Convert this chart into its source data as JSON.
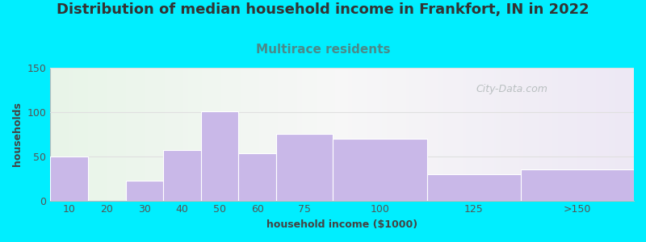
{
  "title": "Distribution of median household income in Frankfort, IN in 2022",
  "subtitle": "Multirace residents",
  "xlabel": "household income ($1000)",
  "ylabel": "households",
  "bar_labels": [
    "10",
    "20",
    "30",
    "40",
    "50",
    "60",
    "75",
    "100",
    "125",
    ">150"
  ],
  "bar_values": [
    50,
    0,
    22,
    57,
    101,
    53,
    75,
    70,
    30,
    35
  ],
  "bar_widths": [
    1,
    1,
    1,
    1,
    1,
    1,
    1.5,
    2.5,
    2.5,
    3.0
  ],
  "bar_lefts": [
    0,
    1,
    2,
    3,
    4,
    5,
    6,
    7.5,
    10,
    12.5
  ],
  "bar_color": "#c9b8e8",
  "bar_edge_color": "#ffffff",
  "ylim": [
    0,
    150
  ],
  "yticks": [
    0,
    50,
    100,
    150
  ],
  "xlim": [
    0,
    15.5
  ],
  "background_outer": "#00eeff",
  "title_fontsize": 13,
  "title_color": "#333333",
  "subtitle_fontsize": 11,
  "subtitle_color": "#4a8a8a",
  "axis_label_fontsize": 9,
  "tick_fontsize": 9,
  "watermark_text": "City-Data.com",
  "watermark_color": "#b0b8b8",
  "grid_color": "#e0e0e0"
}
